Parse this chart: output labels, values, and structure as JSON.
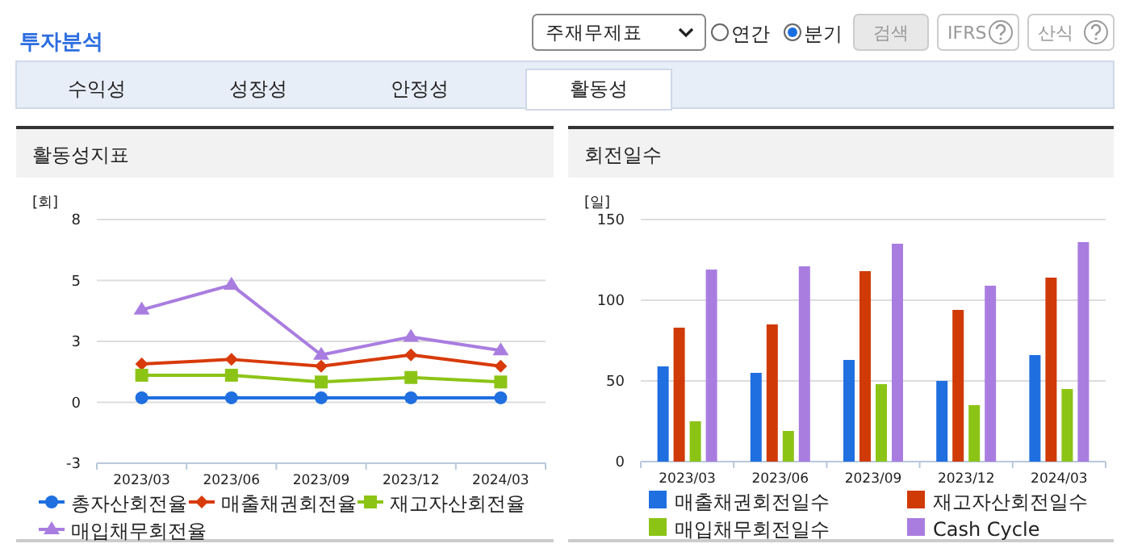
{
  "chart_data": [
    {
      "type": "other",
      "title": "투자분석",
      "annotations": [
        "주재무제표",
        "연간",
        "분기",
        "검색",
        "IFRS",
        "산식",
        "수익성",
        "성장성",
        "안정성",
        "활동성"
      ]
    },
    {
      "type": "line",
      "title": "활동성지표",
      "ylabel": "[회]",
      "categories": [
        "2023/03",
        "2023/06",
        "2023/09",
        "2023/12",
        "2024/03"
      ],
      "ylim": [
        -2.7,
        8.1
      ],
      "yticks": [
        {
          "value": -2.7,
          "label": "-3"
        },
        0,
        {
          "value": 2.7,
          "label": "3"
        },
        {
          "value": 5.4,
          "label": "5"
        },
        {
          "value": 8.1,
          "label": "8"
        }
      ],
      "grid": "y",
      "legend": "bottom",
      "series": [
        {
          "name": "총자산회전율",
          "color": "#1f6fe0",
          "marker": "circle",
          "values": [
            0.2,
            0.2,
            0.2,
            0.2,
            0.2
          ]
        },
        {
          "name": "매출채권회전율",
          "color": "#d83a0a",
          "marker": "diamond",
          "values": [
            1.7,
            1.9,
            1.6,
            2.1,
            1.6
          ]
        },
        {
          "name": "재고자산회전율",
          "color": "#8cc416",
          "marker": "square",
          "values": [
            1.2,
            1.2,
            0.9,
            1.1,
            0.9
          ]
        },
        {
          "name": "매입채무회전율",
          "color": "#a97de0",
          "marker": "triangle",
          "values": [
            4.1,
            5.2,
            2.1,
            2.9,
            2.3
          ]
        }
      ]
    },
    {
      "type": "bar",
      "title": "회전일수",
      "ylabel": "[일]",
      "categories": [
        "2023/03",
        "2023/06",
        "2023/09",
        "2023/12",
        "2024/03"
      ],
      "ylim": [
        0,
        150
      ],
      "yticks": [
        0,
        50,
        100,
        150
      ],
      "grid": "y",
      "legend": "bottom",
      "series": [
        {
          "name": "매출채권회전일수",
          "color": "#1f6fe0",
          "values": [
            59,
            55,
            63,
            50,
            66
          ]
        },
        {
          "name": "재고자산회전일수",
          "color": "#d03a06",
          "values": [
            83,
            85,
            118,
            94,
            114
          ]
        },
        {
          "name": "매입채무회전일수",
          "color": "#8cc416",
          "values": [
            25,
            19,
            48,
            35,
            45
          ]
        },
        {
          "name": "Cash Cycle",
          "color": "#a97de0",
          "values": [
            119,
            121,
            135,
            109,
            136
          ]
        }
      ]
    }
  ]
}
